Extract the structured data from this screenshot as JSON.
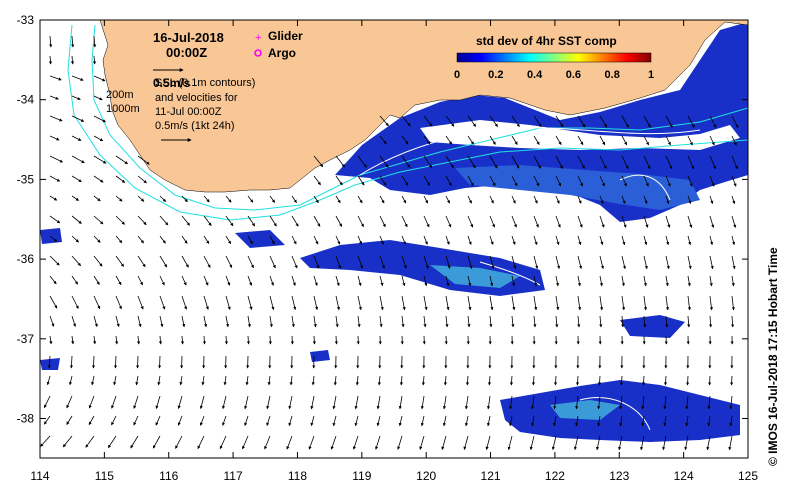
{
  "map": {
    "date": "16-Jul-2018",
    "time": "00:00Z",
    "legend": {
      "glider": "Glider",
      "argo": "Argo",
      "scale_label": "0.5m/s",
      "contour_line1": "SSL  (0.1m contours)",
      "contour_line2": "and velocities for",
      "contour_line3": "11-Jul 00:00Z",
      "contour_line4": "0.5m/s (1kt 24h)",
      "depth_200": "200m",
      "depth_1000": "1000m"
    },
    "colorbar": {
      "title": "std dev of 4hr SST comp",
      "ticks": [
        "0",
        "0.2",
        "0.4",
        "0.6",
        "0.8",
        "1"
      ],
      "min": 0,
      "max": 1
    },
    "axes": {
      "x_ticks": [
        "114",
        "115",
        "116",
        "117",
        "118",
        "119",
        "120",
        "121",
        "122",
        "123",
        "124",
        "125"
      ],
      "y_ticks": [
        "-33",
        "-34",
        "-35",
        "-36",
        "-37",
        "-38"
      ],
      "x_range": [
        114,
        125
      ],
      "y_range": [
        -33,
        -38.5
      ]
    },
    "credit": "© IMOS 16-Jul-2018 17:15 Hobart Time",
    "colors": {
      "land": "#f9c796",
      "ocean": "#ffffff",
      "bathymetry": "#22e0e0",
      "glider_marker": "#ff00ff",
      "argo_marker": "#ff00ff"
    }
  }
}
